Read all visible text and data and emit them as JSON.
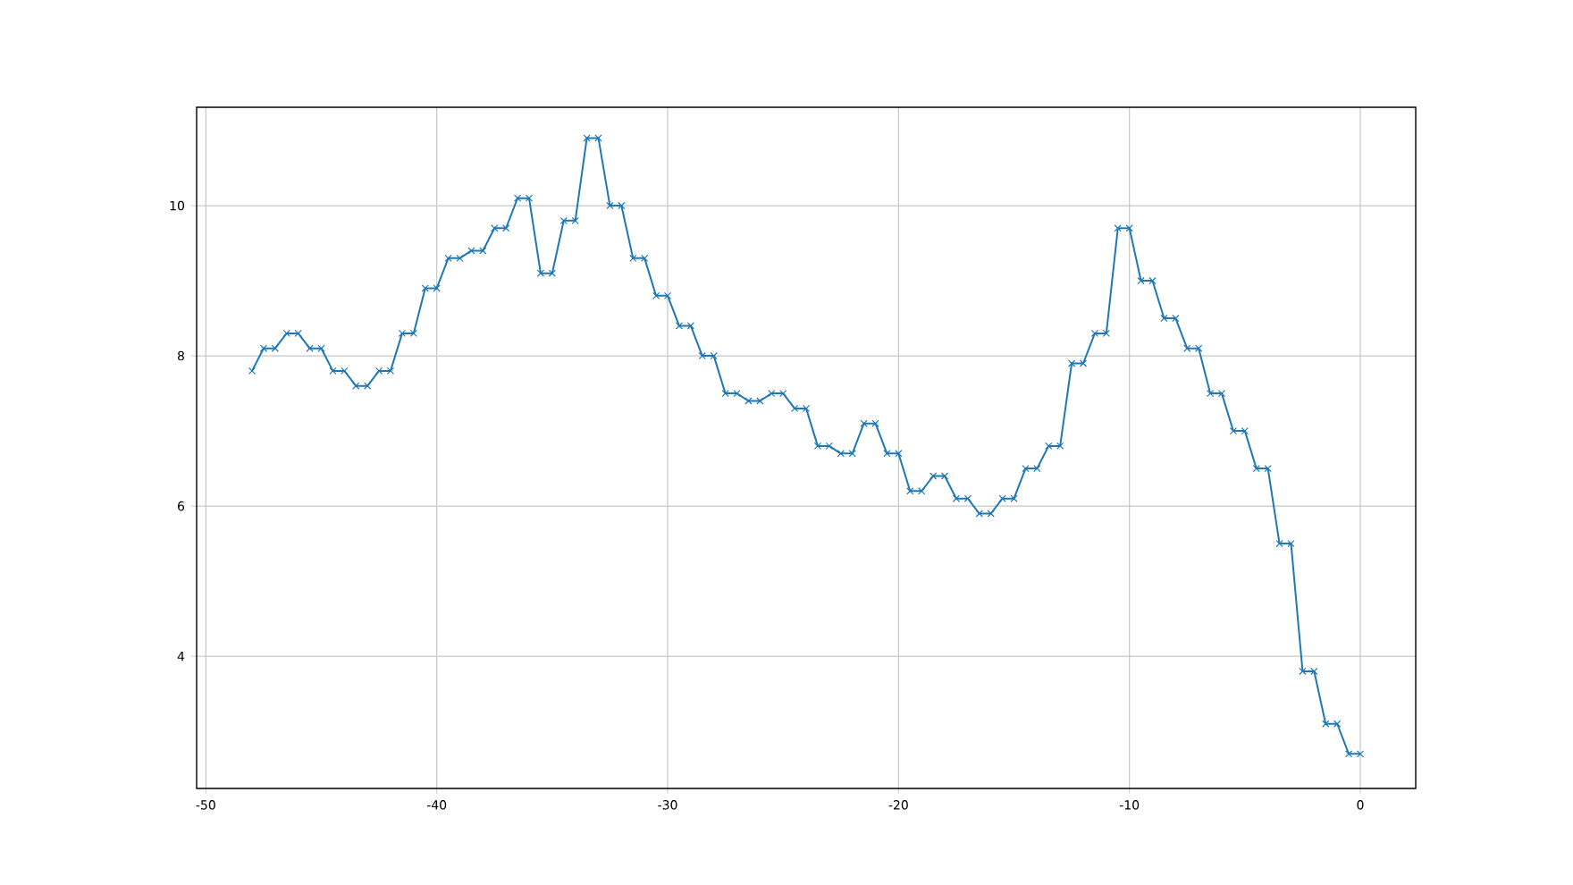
{
  "chart_data": {
    "type": "line",
    "x": [
      -48,
      -47.5,
      -47,
      -46.5,
      -46,
      -45.5,
      -45,
      -44.5,
      -44,
      -43.5,
      -43,
      -42.5,
      -42,
      -41.5,
      -41,
      -40.5,
      -40,
      -39.5,
      -39,
      -38.5,
      -38,
      -37.5,
      -37,
      -36.5,
      -36,
      -35.5,
      -35,
      -34.5,
      -34,
      -33.5,
      -33,
      -32.5,
      -32,
      -31.5,
      -31,
      -30.5,
      -30,
      -29.5,
      -29,
      -28.5,
      -28,
      -27.5,
      -27,
      -26.5,
      -26,
      -25.5,
      -25,
      -24.5,
      -24,
      -23.5,
      -23,
      -22.5,
      -22,
      -21.5,
      -21,
      -20.5,
      -20,
      -19.5,
      -19,
      -18.5,
      -18,
      -17.5,
      -17,
      -16.5,
      -16,
      -15.5,
      -15,
      -14.5,
      -14,
      -13.5,
      -13,
      -12.5,
      -12,
      -11.5,
      -11,
      -10.5,
      -10,
      -9.5,
      -9,
      -8.5,
      -8,
      -7.5,
      -7,
      -6.5,
      -6,
      -5.5,
      -5,
      -4.5,
      -4,
      -3.5,
      -3,
      -2.5,
      -2,
      -1.5,
      -1,
      -0.5,
      0
    ],
    "series": [
      {
        "color": "#1f77b4",
        "values": [
          7.8,
          8.1,
          8.1,
          8.3,
          8.3,
          8.1,
          8.1,
          7.8,
          7.8,
          7.6,
          7.6,
          7.8,
          7.8,
          8.3,
          8.3,
          8.9,
          8.9,
          9.3,
          9.3,
          9.4,
          9.4,
          9.7,
          9.7,
          10.1,
          10.1,
          9.1,
          9.1,
          9.8,
          9.8,
          10.9,
          10.9,
          10.0,
          10.0,
          9.3,
          9.3,
          8.8,
          8.8,
          8.4,
          8.4,
          8.0,
          8.0,
          7.5,
          7.5,
          7.4,
          7.4,
          7.5,
          7.5,
          7.3,
          7.3,
          6.8,
          6.8,
          6.7,
          6.7,
          7.1,
          7.1,
          6.7,
          6.7,
          6.2,
          6.2,
          6.4,
          6.4,
          6.1,
          6.1,
          5.9,
          5.9,
          6.1,
          6.1,
          6.5,
          6.5,
          6.8,
          6.8,
          7.9,
          7.9,
          8.3,
          8.3,
          9.7,
          9.7,
          9.0,
          9.0,
          8.5,
          8.5,
          8.1,
          8.1,
          7.5,
          7.5,
          7.0,
          7.0,
          6.5,
          6.5,
          5.5,
          5.5,
          3.8,
          3.8,
          3.1,
          3.1,
          2.7,
          2.7
        ]
      }
    ],
    "xlim": [
      -50.4,
      2.4
    ],
    "ylim": [
      2.24,
      11.31
    ],
    "xticks": [
      -50,
      -40,
      -30,
      -20,
      -10,
      0
    ],
    "yticks": [
      4,
      6,
      8,
      10
    ],
    "grid": true,
    "marker": "cross",
    "line_style": "solid"
  }
}
